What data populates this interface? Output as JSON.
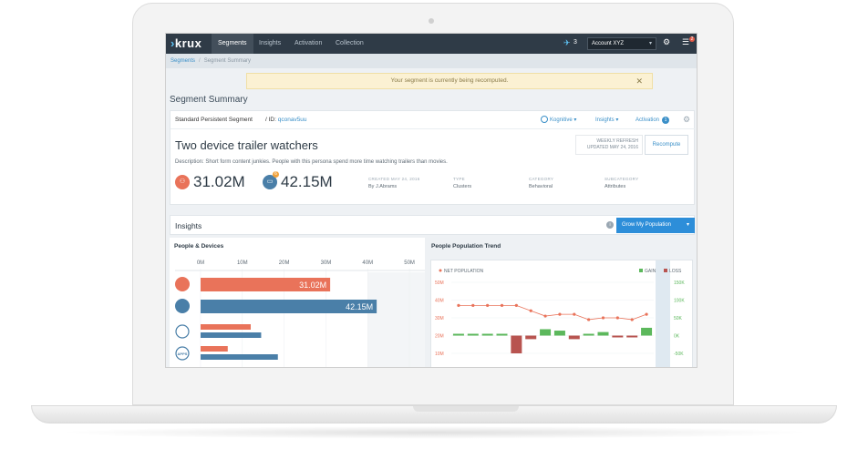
{
  "nav": {
    "logo_text": "krux",
    "tabs": [
      "Segments",
      "Insights",
      "Activation",
      "Collection"
    ],
    "pin_count": "3",
    "account": "Account XYZ",
    "notification_count": "2"
  },
  "breadcrumb": {
    "root": "Segments",
    "current": "Segment Summary"
  },
  "alert": {
    "message": "Your segment is currently being recomputed.",
    "close_glyph": "✕"
  },
  "page_title": "Segment Summary",
  "segment": {
    "type_label": "Standard Persistent Segment",
    "id_label": "/  ID:",
    "id_value": "qconav5uu",
    "actions": {
      "kognitive": "Kognitive",
      "insights": "Insights",
      "activation": "Activation",
      "activation_count": "1"
    },
    "name": "Two device trailer watchers",
    "description": "Description: Short form content junkies. People with this persona spend more time watching trailers than movies.",
    "refresh": {
      "line1": "WEEKLY REFRESH",
      "line2": "UPDATED MAY 24, 2016"
    },
    "recompute_label": "Recompute",
    "people_count": "31.02M",
    "device_count": "42.15M",
    "device_badge": "6",
    "meta": [
      {
        "label": "CREATED MAY 24, 2016",
        "value": "By J.Abrams"
      },
      {
        "label": "TYPE",
        "value": "Clusters"
      },
      {
        "label": "CATEGORY",
        "value": "Behavioral"
      },
      {
        "label": "SUBCATEGORY",
        "value": "Attributes"
      }
    ]
  },
  "insights": {
    "title": "Insights",
    "grow_label": "Grow My Population"
  },
  "colors": {
    "people": "#e9735a",
    "devices": "#4a7fa8",
    "gain": "#5cb85c",
    "loss": "#b85450",
    "accent": "#2d8ed9"
  },
  "chart_data": [
    {
      "type": "bar",
      "title": "People & Devices",
      "axis_ticks": [
        "0M",
        "10M",
        "20M",
        "30M",
        "40M",
        "50M"
      ],
      "xlim": [
        0,
        55
      ],
      "rows": [
        {
          "icon": "people-icon",
          "values": [
            31.02
          ],
          "labels": [
            "31.02M"
          ]
        },
        {
          "icon": "devices-icon",
          "values": [
            42.15
          ],
          "labels": [
            "42.15M"
          ]
        },
        {
          "icon": "globe-icon",
          "values": [
            12,
            14.5
          ],
          "labels": [
            "",
            ""
          ]
        },
        {
          "icon": "apps-icon",
          "values": [
            6.5,
            18.5
          ],
          "labels": [
            "",
            ""
          ],
          "icon_text": "APPS"
        }
      ]
    },
    {
      "type": "line",
      "title": "People Population Trend",
      "legend": {
        "net": "NET POPULATION",
        "gain": "GAIN",
        "loss": "LOSS"
      },
      "left_axis": {
        "ticks": [
          "50M",
          "40M",
          "30M",
          "20M",
          "10M"
        ],
        "values": [
          50,
          40,
          30,
          20,
          10
        ]
      },
      "right_axis": {
        "ticks": [
          "150K",
          "100K",
          "50K",
          "0K",
          "-50K"
        ],
        "values": [
          150,
          100,
          50,
          0,
          -50
        ]
      },
      "net_population": [
        37,
        37,
        37,
        37,
        37,
        34,
        31,
        32,
        32,
        29,
        30,
        30,
        29,
        32
      ],
      "bars": [
        2,
        2,
        2,
        2,
        -50,
        -10,
        18,
        14,
        -10,
        2,
        10,
        -4,
        -4,
        22
      ]
    }
  ]
}
